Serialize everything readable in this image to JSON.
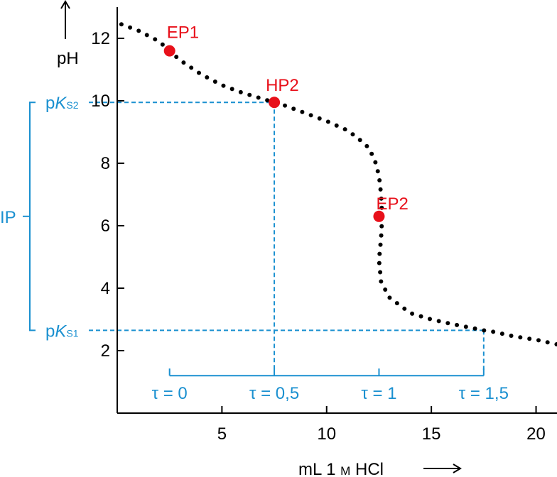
{
  "chart_data": {
    "type": "scatter",
    "title": "",
    "xlabel": "mL 1 M HCl",
    "xlabel_parts": [
      "mL 1 ",
      "M",
      " HCl"
    ],
    "ylabel": "pH",
    "xlim": [
      0,
      21
    ],
    "ylim": [
      0,
      13
    ],
    "x_ticks": [
      5,
      10,
      15,
      20
    ],
    "y_ticks": [
      2,
      4,
      6,
      8,
      10,
      12
    ],
    "series": [
      {
        "values": [
          [
            0.2,
            12.45
          ],
          [
            1.0,
            12.25
          ],
          [
            2.0,
            11.9
          ],
          [
            2.5,
            11.6
          ],
          [
            3.0,
            11.3
          ],
          [
            4.0,
            10.85
          ],
          [
            5.0,
            10.5
          ],
          [
            6.0,
            10.25
          ],
          [
            7.0,
            10.05
          ],
          [
            7.5,
            9.95
          ],
          [
            8.0,
            9.85
          ],
          [
            9.0,
            9.6
          ],
          [
            10.0,
            9.35
          ],
          [
            11.0,
            9.05
          ],
          [
            11.5,
            8.8
          ],
          [
            12.0,
            8.5
          ],
          [
            12.3,
            8.1
          ],
          [
            12.5,
            7.6
          ],
          [
            12.6,
            7.0
          ],
          [
            12.65,
            6.3
          ],
          [
            12.6,
            5.6
          ],
          [
            12.5,
            4.9
          ],
          [
            12.6,
            4.2
          ],
          [
            13.0,
            3.7
          ],
          [
            14.0,
            3.2
          ],
          [
            15.0,
            3.0
          ],
          [
            16.0,
            2.85
          ],
          [
            17.0,
            2.72
          ],
          [
            17.5,
            2.65
          ],
          [
            18.0,
            2.6
          ],
          [
            19.0,
            2.45
          ],
          [
            20.0,
            2.35
          ],
          [
            21.0,
            2.2
          ]
        ]
      }
    ],
    "marked_points": [
      {
        "label": "EP1",
        "x": 2.5,
        "y": 11.6
      },
      {
        "label": "HP2",
        "x": 7.5,
        "y": 9.95
      },
      {
        "label": "EP2",
        "x": 12.5,
        "y": 6.3
      }
    ],
    "reference_levels": [
      {
        "label_prefix": "p",
        "label_main": "K",
        "label_sub": "S2",
        "y": 9.95
      },
      {
        "label_prefix": "p",
        "label_main": "K",
        "label_sub": "S1",
        "y": 2.65
      }
    ],
    "interval_label": "IP",
    "tau_marks": [
      {
        "label": "τ = 0",
        "x": 2.5
      },
      {
        "label": "τ = 0,5",
        "x": 7.5
      },
      {
        "label": "τ = 1",
        "x": 12.5
      },
      {
        "label": "τ = 1,5",
        "x": 17.5
      }
    ],
    "tau_level_y": 1.2,
    "colors": {
      "curve": "#000000",
      "points": "#e8101a",
      "annotations": "#1a90d0"
    }
  }
}
